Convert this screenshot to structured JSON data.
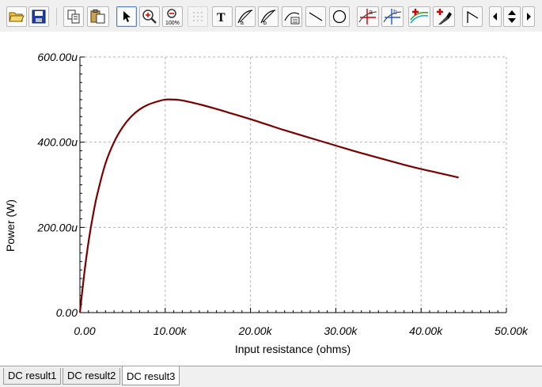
{
  "toolbar": {
    "buttons": [
      {
        "id": "open-folder-icon"
      },
      {
        "id": "save-disk-icon"
      },
      {
        "id": "copy-icon"
      },
      {
        "id": "paste-icon"
      },
      {
        "id": "pointer-arrow-icon",
        "active": true
      },
      {
        "id": "zoom-in-icon"
      },
      {
        "id": "zoom-100-icon",
        "text": "100%"
      },
      {
        "id": "grid-dots-icon",
        "disabled": true
      },
      {
        "id": "text-tool-icon",
        "text": "T"
      },
      {
        "id": "cursor-a-icon"
      },
      {
        "id": "cursor-b-icon"
      },
      {
        "id": "curve-label-icon"
      },
      {
        "id": "line-tool-icon"
      },
      {
        "id": "circle-tool-icon"
      },
      {
        "id": "marker-a-icon",
        "text": "a"
      },
      {
        "id": "marker-b-icon",
        "text": "b"
      },
      {
        "id": "add-curve-icon"
      },
      {
        "id": "add-marker-icon"
      },
      {
        "id": "polyline-icon"
      },
      {
        "id": "scroll-left-icon"
      },
      {
        "id": "scroll-up-down-icon"
      },
      {
        "id": "scroll-right-icon"
      }
    ]
  },
  "chart_data": {
    "type": "line",
    "title": "",
    "xlabel": "Input resistance (ohms)",
    "ylabel": "Power (W)",
    "xlim": [
      0,
      50000
    ],
    "ylim": [
      0,
      0.0006
    ],
    "x_ticks": [
      {
        "value": 0,
        "label": "0.00"
      },
      {
        "value": 10000,
        "label": "10.00k"
      },
      {
        "value": 20000,
        "label": "20.00k"
      },
      {
        "value": 30000,
        "label": "30.00k"
      },
      {
        "value": 40000,
        "label": "40.00k"
      },
      {
        "value": 50000,
        "label": "50.00k"
      }
    ],
    "y_ticks": [
      {
        "value": 0,
        "label": "0.00"
      },
      {
        "value": 0.0002,
        "label": "200.00u"
      },
      {
        "value": 0.0004,
        "label": "400.00u"
      },
      {
        "value": 0.0006,
        "label": "600.00u"
      }
    ],
    "grid": true,
    "line_color": "#7a0000",
    "series": [
      {
        "x": [
          0,
          500,
          1000,
          1500,
          2000,
          3000,
          4000,
          5000,
          6000,
          7000,
          8000,
          9000,
          10000,
          11000,
          12000,
          14000,
          16000,
          18000,
          20000,
          22000,
          24000,
          26000,
          28000,
          30000,
          32000,
          34000,
          36000,
          38000,
          40000,
          42000,
          44400
        ],
        "y": [
          0,
          9e-05,
          0.000165,
          0.000225,
          0.000275,
          0.00035,
          0.0004,
          0.000435,
          0.00046,
          0.000477,
          0.000488,
          0.000495,
          0.0005,
          0.0005,
          0.000498,
          0.000489,
          0.000478,
          0.000466,
          0.000454,
          0.000441,
          0.000428,
          0.000416,
          0.000404,
          0.000392,
          0.00038,
          0.000369,
          0.000358,
          0.000347,
          0.000337,
          0.000328,
          0.000317
        ]
      }
    ]
  },
  "tabs": [
    {
      "label": "DC result1",
      "active": false
    },
    {
      "label": "DC result2",
      "active": false
    },
    {
      "label": "DC result3",
      "active": true
    }
  ]
}
